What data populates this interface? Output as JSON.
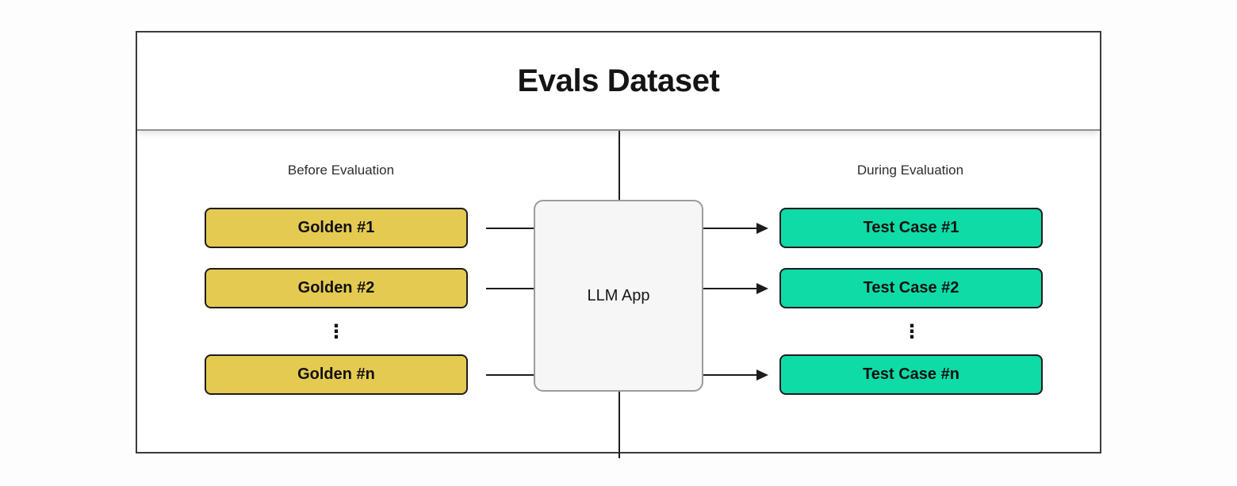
{
  "page": {
    "background": "#FDFDFD"
  },
  "colors": {
    "page-bg": "#FDFDFD",
    "golden-fill": "#E5CA52",
    "teal-fill": "#0FDBA7",
    "box-border": "#1D1D1D",
    "container-border": "#3B3B3B",
    "header-divider": "#8F8F8F",
    "llm-fill": "#F6F6F6",
    "llm-border": "#9B9B9B",
    "connector": "#1C1C1C",
    "title-text": "#141414",
    "label-text": "#2E2E2E"
  },
  "diagram": {
    "title": "Evals Dataset",
    "left": {
      "label": "Before Evaluation",
      "items": [
        "Golden #1",
        "Golden #2",
        "Golden #n"
      ],
      "ellipsis": "⋮"
    },
    "center": {
      "label": "LLM App"
    },
    "right": {
      "label": "During Evaluation",
      "items": [
        "Test Case #1",
        "Test Case #2",
        "Test Case #n"
      ],
      "ellipsis": "⋮"
    }
  }
}
